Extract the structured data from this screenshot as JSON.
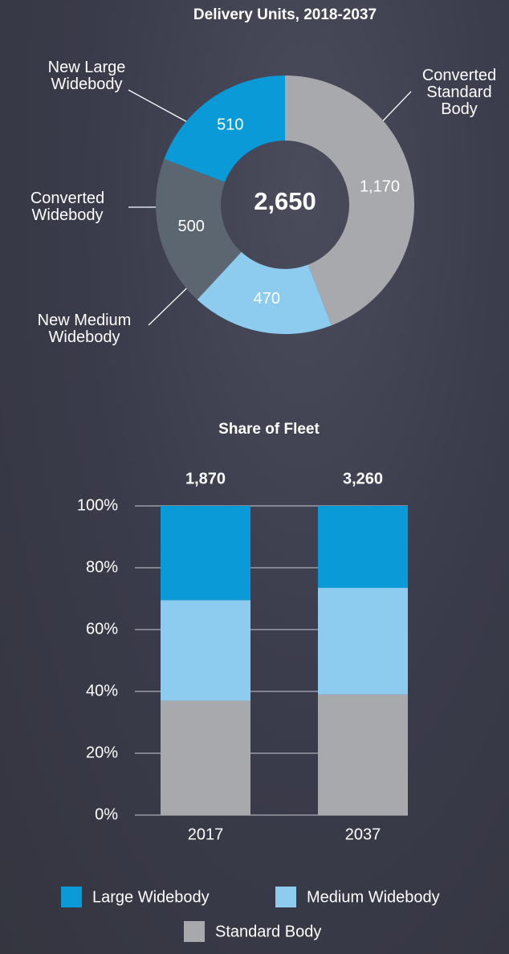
{
  "chart_data": [
    {
      "type": "donut",
      "title": "Delivery Units, 2018-2037",
      "categories": [
        "Converted Standard Body",
        "New Medium Widebody",
        "Converted Widebody",
        "New Large Widebody"
      ],
      "values": [
        1170,
        470,
        500,
        510
      ],
      "value_labels": [
        "1,170",
        "470",
        "500",
        "510"
      ],
      "colors": [
        "#a7a9ac",
        "#8dcbef",
        "#5b6670",
        "#0a9ad8"
      ],
      "center_label": "2,650"
    },
    {
      "type": "stacked-bar",
      "title": "Share of Fleet",
      "categories": [
        "2017",
        "2037"
      ],
      "top_labels": [
        "1,870",
        "3,260"
      ],
      "series": [
        {
          "name": "Standard Body",
          "color": "#a7a9ac",
          "values": [
            37,
            39
          ]
        },
        {
          "name": "Medium Widebody",
          "color": "#8dcbef",
          "values": [
            32.5,
            34.5
          ]
        },
        {
          "name": "Large Widebody",
          "color": "#0a9ad8",
          "values": [
            30.5,
            26.5
          ]
        }
      ],
      "ylim": [
        0,
        100
      ],
      "yticks": [
        {
          "value": 0,
          "label": "0%"
        },
        {
          "value": 20,
          "label": "20%"
        },
        {
          "value": 40,
          "label": "40%"
        },
        {
          "value": 60,
          "label": "60%"
        },
        {
          "value": 80,
          "label": "80%"
        },
        {
          "value": 100,
          "label": "100%"
        }
      ],
      "grid": true
    }
  ]
}
